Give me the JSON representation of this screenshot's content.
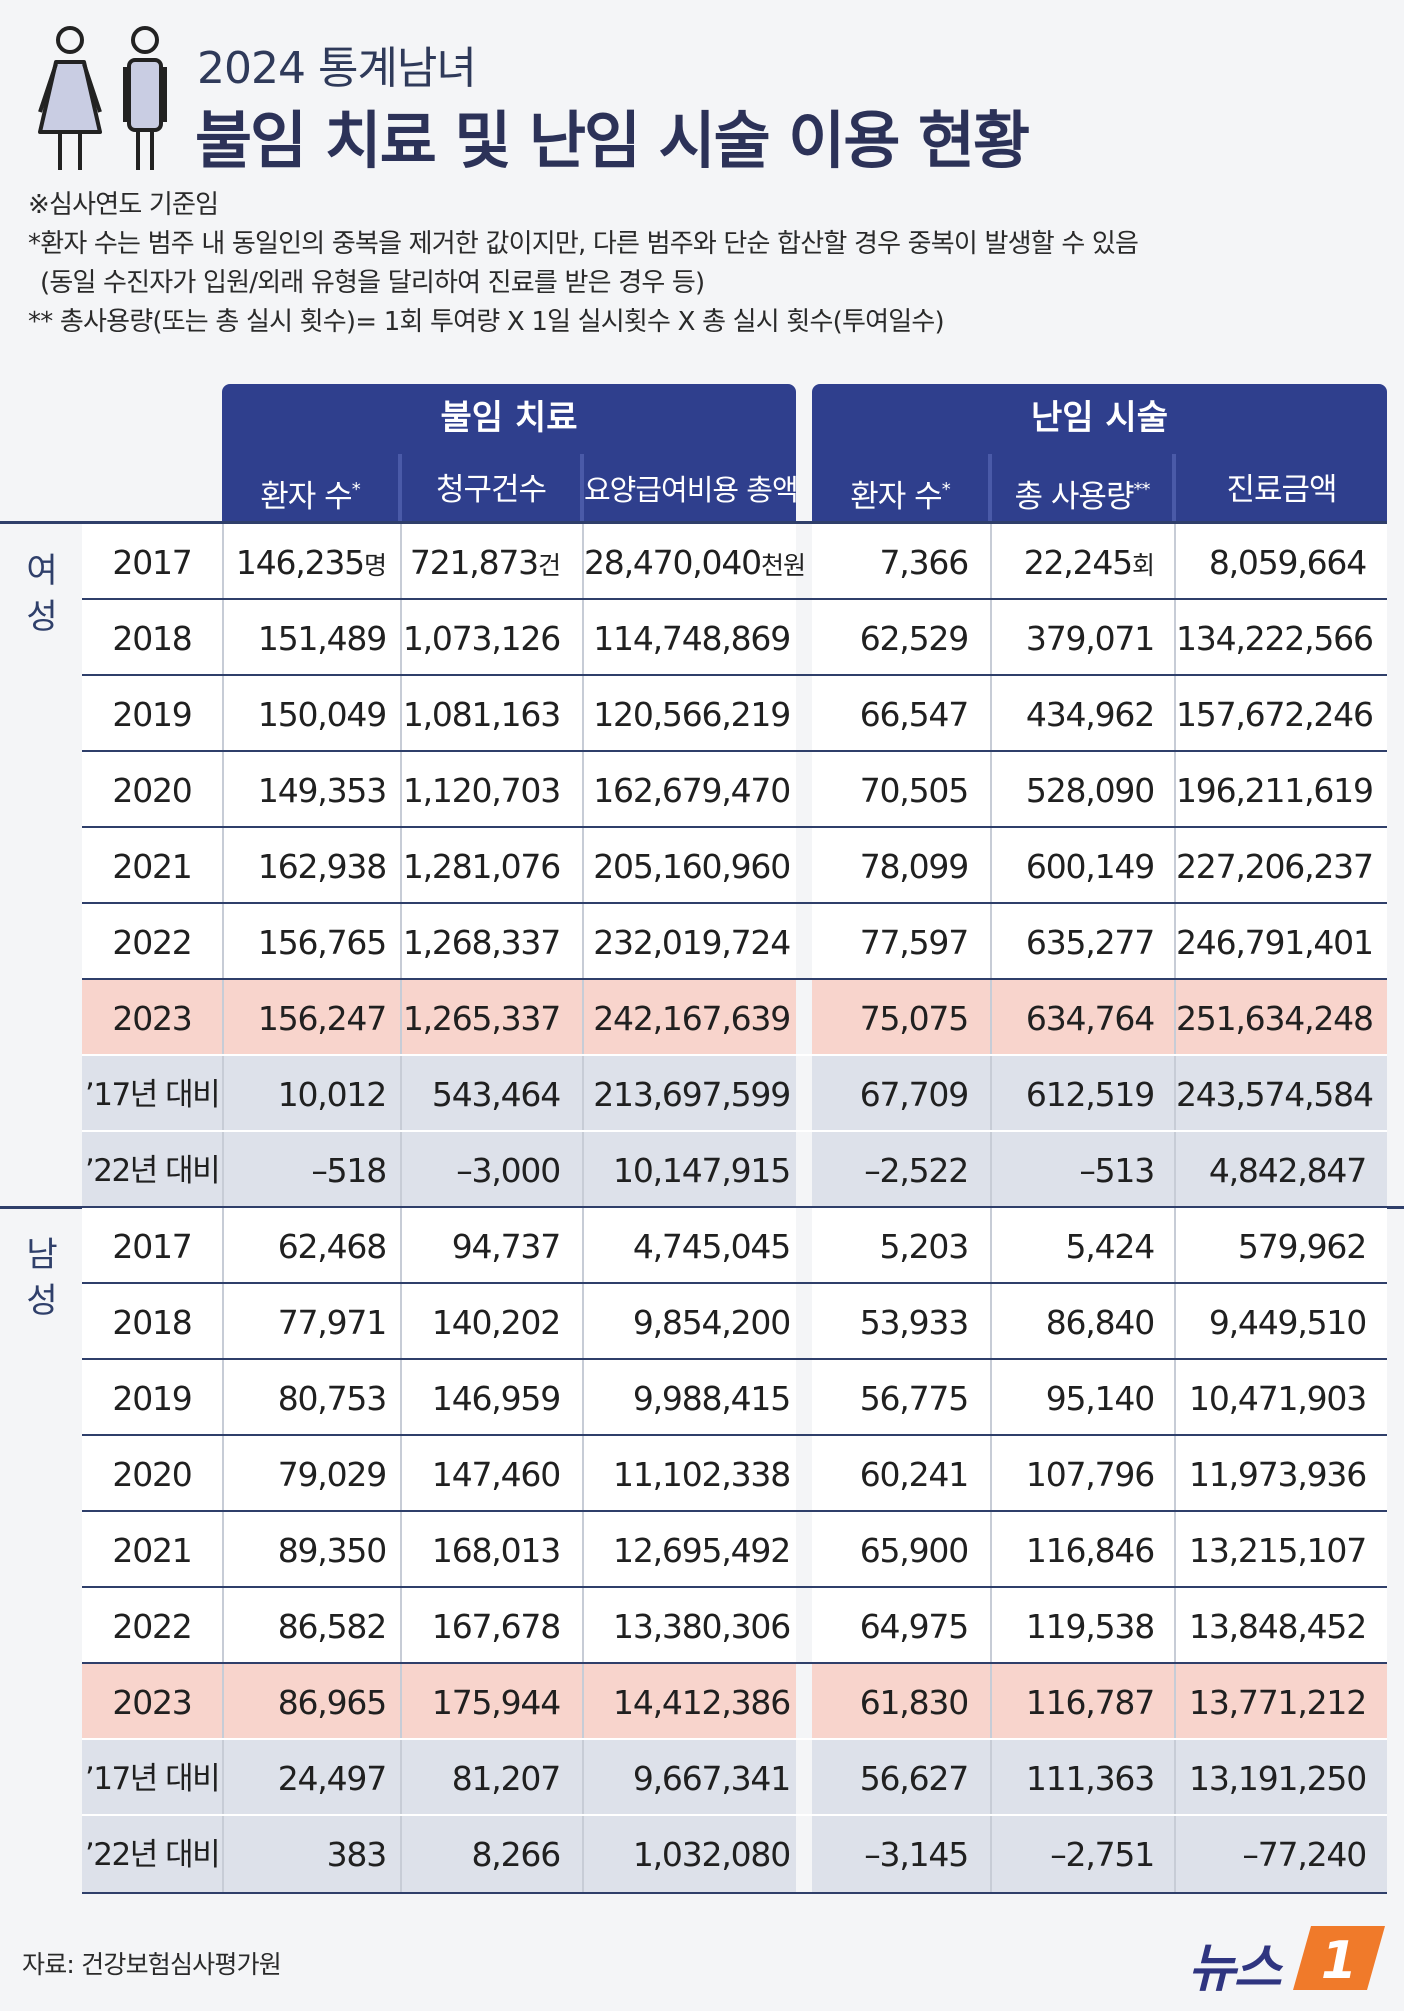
{
  "header": {
    "subtitle": "2024 통계남녀",
    "title": "불임 치료 및 난임 시술 이용 현황"
  },
  "notes": [
    "※심사연도 기준임",
    "*환자 수는 범주 내 동일인의 중복을 제거한 값이지만, 다른 범주와 단순 합산할 경우 중복이 발생할 수 있음",
    "(동일 수진자가 입원/외래 유형을 달리하여 진료를 받은 경우 등)",
    "** 총사용량(또는 총 실시 횟수)= 1회 투여량 X 1일 실시횟수 X 총 실시 횟수(투여일수)"
  ],
  "table": {
    "groups": [
      "불임 치료",
      "난임 시술"
    ],
    "columns": [
      "환자 수",
      "청구건수",
      "요양급여비용 총액",
      "환자 수",
      "총 사용량",
      "진료금액"
    ],
    "column_marks": [
      "*",
      "",
      "",
      "*",
      "**",
      ""
    ],
    "units": [
      "명",
      "건",
      "천원",
      "",
      "회",
      ""
    ],
    "sections": [
      {
        "label": "여성",
        "rows": [
          {
            "year": "2017",
            "values": [
              "146,235",
              "721,873",
              "28,470,040",
              "7,366",
              "22,245",
              "8,059,664"
            ],
            "type": "normal"
          },
          {
            "year": "2018",
            "values": [
              "151,489",
              "1,073,126",
              "114,748,869",
              "62,529",
              "379,071",
              "134,222,566"
            ],
            "type": "normal"
          },
          {
            "year": "2019",
            "values": [
              "150,049",
              "1,081,163",
              "120,566,219",
              "66,547",
              "434,962",
              "157,672,246"
            ],
            "type": "normal"
          },
          {
            "year": "2020",
            "values": [
              "149,353",
              "1,120,703",
              "162,679,470",
              "70,505",
              "528,090",
              "196,211,619"
            ],
            "type": "normal"
          },
          {
            "year": "2021",
            "values": [
              "162,938",
              "1,281,076",
              "205,160,960",
              "78,099",
              "600,149",
              "227,206,237"
            ],
            "type": "normal"
          },
          {
            "year": "2022",
            "values": [
              "156,765",
              "1,268,337",
              "232,019,724",
              "77,597",
              "635,277",
              "246,791,401"
            ],
            "type": "normal"
          },
          {
            "year": "2023",
            "values": [
              "156,247",
              "1,265,337",
              "242,167,639",
              "75,075",
              "634,764",
              "251,634,248"
            ],
            "type": "hl"
          },
          {
            "year": "’17년 대비",
            "values": [
              "10,012",
              "543,464",
              "213,697,599",
              "67,709",
              "612,519",
              "243,574,584"
            ],
            "type": "diff"
          },
          {
            "year": "’22년 대비",
            "values": [
              "–518",
              "–3,000",
              "10,147,915",
              "–2,522",
              "–513",
              "4,842,847"
            ],
            "type": "diff"
          }
        ]
      },
      {
        "label": "남성",
        "rows": [
          {
            "year": "2017",
            "values": [
              "62,468",
              "94,737",
              "4,745,045",
              "5,203",
              "5,424",
              "579,962"
            ],
            "type": "normal"
          },
          {
            "year": "2018",
            "values": [
              "77,971",
              "140,202",
              "9,854,200",
              "53,933",
              "86,840",
              "9,449,510"
            ],
            "type": "normal"
          },
          {
            "year": "2019",
            "values": [
              "80,753",
              "146,959",
              "9,988,415",
              "56,775",
              "95,140",
              "10,471,903"
            ],
            "type": "normal"
          },
          {
            "year": "2020",
            "values": [
              "79,029",
              "147,460",
              "11,102,338",
              "60,241",
              "107,796",
              "11,973,936"
            ],
            "type": "normal"
          },
          {
            "year": "2021",
            "values": [
              "89,350",
              "168,013",
              "12,695,492",
              "65,900",
              "116,846",
              "13,215,107"
            ],
            "type": "normal"
          },
          {
            "year": "2022",
            "values": [
              "86,582",
              "167,678",
              "13,380,306",
              "64,975",
              "119,538",
              "13,848,452"
            ],
            "type": "normal"
          },
          {
            "year": "2023",
            "values": [
              "86,965",
              "175,944",
              "14,412,386",
              "61,830",
              "116,787",
              "13,771,212"
            ],
            "type": "hl"
          },
          {
            "year": "’17년 대비",
            "values": [
              "24,497",
              "81,207",
              "9,667,341",
              "56,627",
              "111,363",
              "13,191,250"
            ],
            "type": "diff"
          },
          {
            "year": "’22년 대비",
            "values": [
              "383",
              "8,266",
              "1,032,080",
              "–3,145",
              "–2,751",
              "–77,240"
            ],
            "type": "diff"
          }
        ]
      }
    ]
  },
  "footer": {
    "source": "자료: 건강보험심사평가원",
    "logo_text": "뉴스",
    "logo_mark": "1"
  },
  "colors": {
    "header_bg": "#2f3f8d",
    "highlight": "#f8d4cc",
    "diff_bg": "#dde1ea"
  }
}
